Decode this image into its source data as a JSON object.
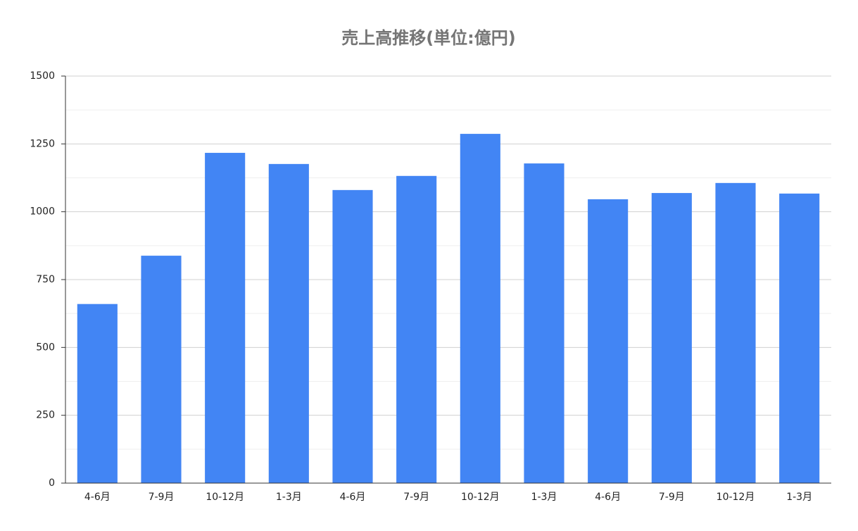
{
  "chart_data": {
    "type": "bar",
    "title": "売上高推移(単位:億円)",
    "categories": [
      "4-6月",
      "7-9月",
      "10-12月",
      "1-3月",
      "4-6月",
      "7-9月",
      "10-12月",
      "1-3月",
      "4-6月",
      "7-9月",
      "10-12月",
      "1-3月"
    ],
    "values": [
      660,
      838,
      1217,
      1176,
      1080,
      1132,
      1287,
      1178,
      1046,
      1069,
      1106,
      1067
    ],
    "color": "#4285f4",
    "ylim": [
      0,
      1500
    ],
    "yticks": [
      0,
      250,
      500,
      750,
      1000,
      1250,
      1500
    ],
    "minor_yticks": [
      125,
      375,
      625,
      875,
      1125,
      1375
    ],
    "grid": true
  }
}
